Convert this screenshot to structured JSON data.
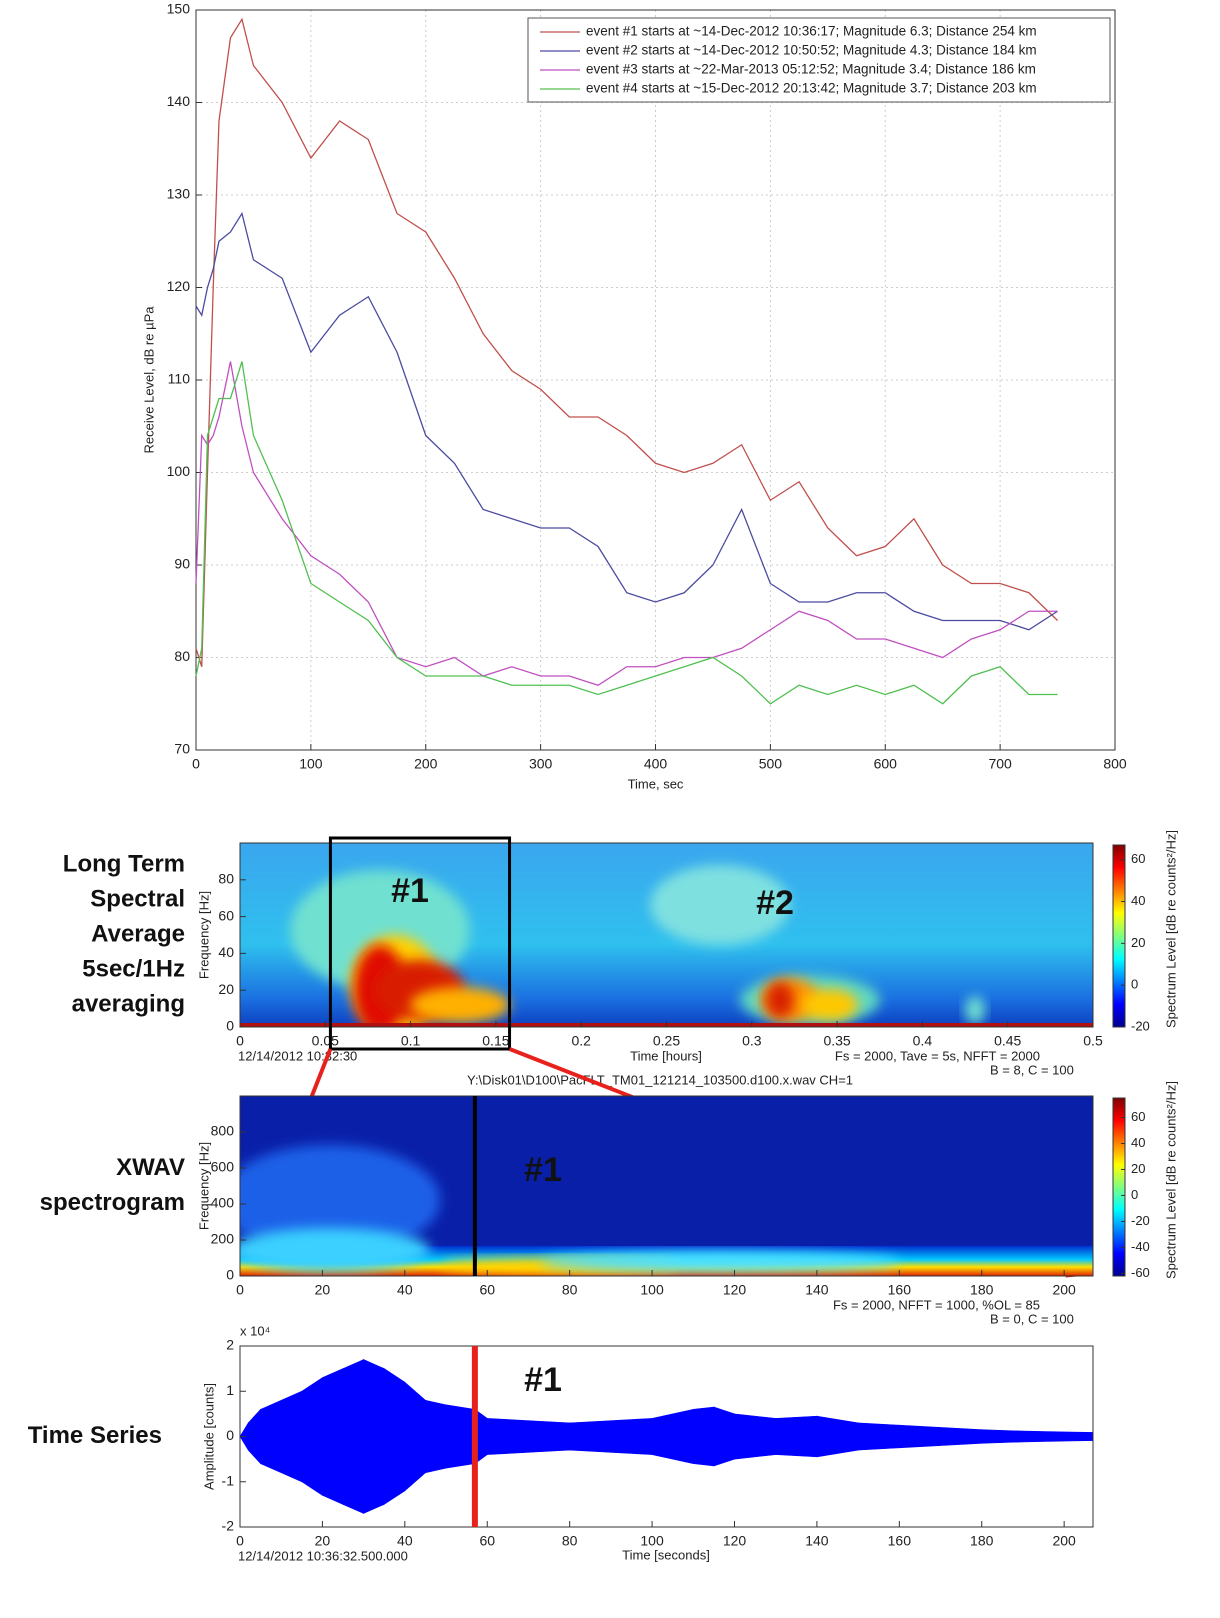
{
  "chart_data": [
    {
      "type": "line",
      "xlabel": "Time, sec",
      "ylabel": "Receive Level, dB re µPa",
      "x": [
        0,
        5,
        10,
        15,
        20,
        30,
        40,
        50,
        75,
        100,
        125,
        150,
        175,
        200,
        225,
        250,
        275,
        300,
        325,
        350,
        375,
        400,
        425,
        450,
        475,
        500,
        525,
        550,
        575,
        600,
        625,
        650,
        675,
        700,
        725,
        750
      ],
      "series": [
        {
          "name": "event #1 starts at ~14-Dec-2012 10:36:17; Magnitude 6.3; Distance 254 km",
          "color": "#c0504d",
          "values": [
            81,
            79,
            100,
            120,
            138,
            147,
            149,
            144,
            140,
            134,
            138,
            136,
            128,
            126,
            121,
            115,
            111,
            109,
            106,
            106,
            104,
            101,
            100,
            101,
            103,
            97,
            99,
            94,
            91,
            92,
            95,
            90,
            88,
            88,
            87,
            84
          ]
        },
        {
          "name": "event #2 starts at ~14-Dec-2012 10:50:52; Magnitude 4.3; Distance 184 km",
          "color": "#4b4ba0",
          "values": [
            118,
            117,
            120,
            122,
            125,
            126,
            128,
            123,
            121,
            113,
            117,
            119,
            113,
            104,
            101,
            96,
            95,
            94,
            94,
            92,
            87,
            86,
            87,
            90,
            96,
            88,
            86,
            86,
            87,
            87,
            85,
            84,
            84,
            84,
            83,
            85
          ]
        },
        {
          "name": "event #3 starts at ~22-Mar-2013 05:12:52; Magnitude 3.4; Distance 186 km",
          "color": "#c050c0",
          "values": [
            88,
            104,
            103,
            104,
            106,
            112,
            105,
            100,
            95,
            91,
            89,
            86,
            80,
            79,
            80,
            78,
            79,
            78,
            78,
            77,
            79,
            79,
            80,
            80,
            81,
            83,
            85,
            84,
            82,
            82,
            81,
            80,
            82,
            83,
            85,
            85
          ]
        },
        {
          "name": "event #4 starts at ~15-Dec-2012 20:13:42; Magnitude 3.7; Distance 203 km",
          "color": "#50c050",
          "values": [
            78,
            81,
            104,
            106,
            108,
            108,
            112,
            104,
            97,
            88,
            86,
            84,
            80,
            78,
            78,
            78,
            77,
            77,
            77,
            76,
            77,
            78,
            79,
            80,
            78,
            75,
            77,
            76,
            77,
            76,
            77,
            75,
            78,
            79,
            76,
            76
          ]
        }
      ],
      "xlim": [
        0,
        800
      ],
      "xticks": [
        0,
        100,
        200,
        300,
        400,
        500,
        600,
        700,
        800
      ],
      "ylim": [
        70,
        150
      ],
      "yticks": [
        70,
        80,
        90,
        100,
        110,
        120,
        130,
        140,
        150
      ],
      "grid": true,
      "legend": "upper right"
    },
    {
      "type": "spectrogram",
      "side_label": [
        "Long Term",
        "Spectral",
        "Average",
        "5sec/1Hz",
        "averaging"
      ],
      "xlabel": "Time [hours]",
      "ylabel": "Frequency [Hz]",
      "colorbar_label": "Spectrum Level [dB re counts²/Hz]",
      "start_time": "12/14/2012 10:32:30",
      "info": [
        "Fs = 2000, Tave = 5s, NFFT = 2000",
        "B = 8, C = 100"
      ],
      "file": "Y:\\Disk01\\D100\\PacFLT_TM01_121214_103500.d100.x.wav CH=1",
      "annotations": [
        "#1",
        "#2"
      ],
      "xlim": [
        0,
        0.5
      ],
      "xticks": [
        0,
        0.05,
        0.1,
        0.15,
        0.2,
        0.25,
        0.3,
        0.35,
        0.4,
        0.45,
        0.5
      ],
      "ylim": [
        0,
        100
      ],
      "yticks": [
        0,
        20,
        40,
        60,
        80
      ],
      "clim": [
        -20,
        67
      ],
      "cticks": [
        -20,
        0,
        20,
        40,
        60
      ],
      "selection": [
        0.053,
        0.158
      ]
    },
    {
      "type": "spectrogram",
      "side_label": [
        "XWAV",
        "spectrogram"
      ],
      "ylabel": "Frequency [Hz]",
      "colorbar_label": "Spectrum Level [dB re counts²/Hz]",
      "info": [
        "Fs = 2000, NFFT = 1000, %OL = 85",
        "B = 0, C = 100"
      ],
      "annotations": [
        "#1"
      ],
      "xlim": [
        0,
        207
      ],
      "xticks": [
        0,
        20,
        40,
        60,
        80,
        100,
        120,
        140,
        160,
        180,
        200
      ],
      "ylim": [
        0,
        1000
      ],
      "yticks": [
        0,
        200,
        400,
        600,
        800
      ],
      "clim": [
        -62,
        75
      ],
      "cticks": [
        -60,
        -40,
        -20,
        0,
        20,
        40,
        60
      ],
      "marker": 57
    },
    {
      "type": "waveform",
      "side_label": [
        "Time Series"
      ],
      "xlabel": "Time [seconds]",
      "ylabel": "Amplitude [counts]",
      "scale_label": "x 10⁴",
      "start_time": "12/14/2012 10:36:32.500.000",
      "annotations": [
        "#1"
      ],
      "x": [
        0,
        2,
        5,
        10,
        15,
        20,
        25,
        30,
        35,
        40,
        45,
        50,
        57,
        60,
        70,
        80,
        90,
        100,
        110,
        115,
        120,
        130,
        140,
        150,
        160,
        170,
        180,
        190,
        200,
        207
      ],
      "values": [
        0,
        3000,
        6000,
        8000,
        10000,
        13000,
        15000,
        17000,
        15000,
        12000,
        8000,
        7000,
        6000,
        4000,
        3500,
        3000,
        3500,
        4000,
        6000,
        6500,
        5000,
        4000,
        4500,
        3000,
        2500,
        2000,
        1500,
        1200,
        1000,
        900
      ],
      "xlim": [
        0,
        207
      ],
      "xticks": [
        0,
        20,
        40,
        60,
        80,
        100,
        120,
        140,
        160,
        180,
        200
      ],
      "ylim": [
        -20000,
        20000
      ],
      "yticks": [
        {
          "value": -20000,
          "label": "-2"
        },
        {
          "value": -10000,
          "label": "-1"
        },
        0,
        {
          "value": 10000,
          "label": "1"
        },
        {
          "value": 20000,
          "label": "2"
        }
      ],
      "marker": 57
    }
  ]
}
